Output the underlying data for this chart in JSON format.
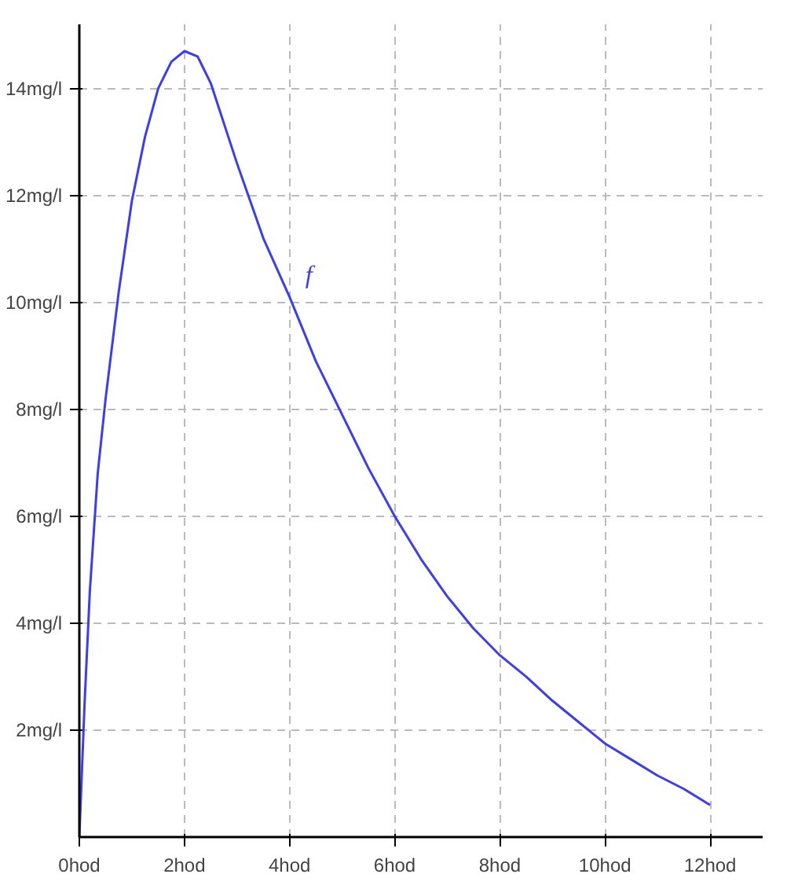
{
  "chart_data": {
    "type": "line",
    "x": [
      0,
      0.1,
      0.2,
      0.35,
      0.5,
      0.75,
      1,
      1.25,
      1.5,
      1.75,
      2,
      2.25,
      2.5,
      3,
      3.5,
      4,
      4.5,
      5,
      5.5,
      6,
      6.5,
      7,
      7.5,
      8,
      8.5,
      9,
      9.5,
      10,
      10.5,
      11,
      11.5,
      12
    ],
    "series": [
      {
        "name": "f",
        "color": "#3b3bff",
        "values": [
          0,
          2.5,
          4.6,
          6.8,
          8.2,
          10.2,
          11.9,
          13.1,
          14.0,
          14.5,
          14.7,
          14.6,
          14.1,
          12.6,
          11.2,
          10.1,
          8.9,
          7.9,
          6.9,
          6.0,
          5.2,
          4.5,
          3.9,
          3.4,
          3.0,
          2.55,
          2.15,
          1.75,
          1.45,
          1.15,
          0.9,
          0.6
        ]
      }
    ],
    "xlim": [
      0,
      13
    ],
    "ylim": [
      0,
      15.2
    ],
    "xticks": [
      {
        "value": 0,
        "label": "0hod"
      },
      {
        "value": 2,
        "label": "2hod"
      },
      {
        "value": 4,
        "label": "4hod"
      },
      {
        "value": 6,
        "label": "6hod"
      },
      {
        "value": 8,
        "label": "8hod"
      },
      {
        "value": 10,
        "label": "10hod"
      },
      {
        "value": 12,
        "label": "12hod"
      }
    ],
    "yticks": [
      {
        "value": 2,
        "label": "2mg/l"
      },
      {
        "value": 4,
        "label": "4mg/l"
      },
      {
        "value": 6,
        "label": "6mg/l"
      },
      {
        "value": 8,
        "label": "8mg/l"
      },
      {
        "value": 10,
        "label": "10mg/l"
      },
      {
        "value": 12,
        "label": "12mg/l"
      },
      {
        "value": 14,
        "label": "14mg/l"
      }
    ],
    "grid": true,
    "marker": "none",
    "line_style": "solid"
  }
}
